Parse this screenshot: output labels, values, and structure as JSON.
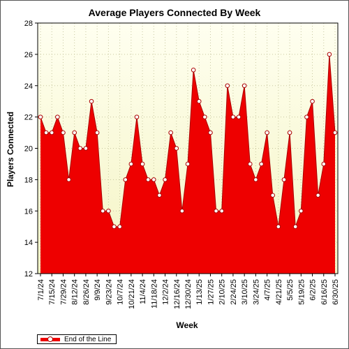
{
  "chart_data": {
    "type": "area",
    "title": "Average Players Connected By Week",
    "xlabel": "Week",
    "ylabel": "Players Connected",
    "ylim": [
      12,
      28
    ],
    "yticks": [
      12,
      14,
      16,
      18,
      20,
      22,
      24,
      26,
      28
    ],
    "grid": true,
    "legend_position": "bottom-left",
    "colors": {
      "fill": "#ee0000",
      "line": "#aa0000",
      "marker_fill": "#ffffff",
      "plot_bg_top": "#fffff0",
      "plot_bg_bottom": "#f4f4c4"
    },
    "x_tick_labels": [
      "7/1/24",
      "7/15/24",
      "7/29/24",
      "8/12/24",
      "8/26/24",
      "9/9/24",
      "9/23/24",
      "10/7/24",
      "10/21/24",
      "11/4/24",
      "11/18/24",
      "12/2/24",
      "12/16/24",
      "12/30/24",
      "1/13/25",
      "1/27/25",
      "2/10/25",
      "2/24/25",
      "3/10/25",
      "3/24/25",
      "4/7/25",
      "4/21/25",
      "5/5/25",
      "5/19/25",
      "6/2/25",
      "6/16/25",
      "6/30/25"
    ],
    "series": [
      {
        "name": "End of the Line",
        "values": [
          22,
          21,
          21,
          22,
          21,
          18,
          21,
          20,
          20,
          23,
          21,
          16,
          16,
          15,
          15,
          18,
          19,
          22,
          19,
          18,
          18,
          17,
          18,
          21,
          20,
          16,
          19,
          25,
          23,
          22,
          21,
          16,
          16,
          24,
          22,
          22,
          24,
          19,
          18,
          19,
          21,
          17,
          15,
          18,
          21,
          15,
          16,
          22,
          23,
          17,
          19,
          26,
          21
        ]
      }
    ]
  }
}
